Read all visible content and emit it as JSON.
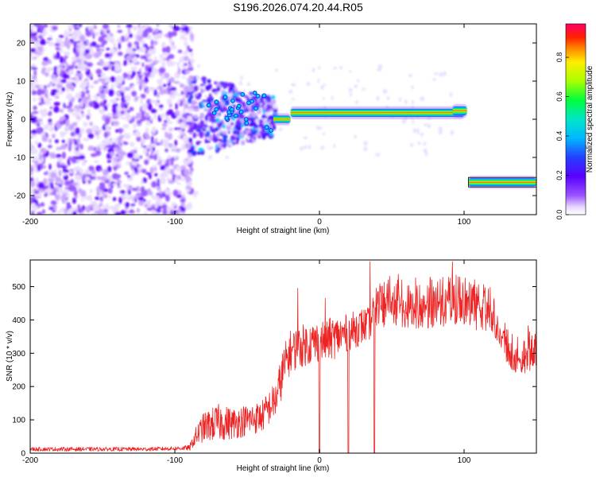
{
  "title": "S196.2026.074.20.44.R05",
  "colors": {
    "line": "#ee2222",
    "axis": "#000000",
    "palette": [
      "#ffffff",
      "#e0c8ff",
      "#b98cff",
      "#8a3cff",
      "#6a00ff",
      "#2233ff",
      "#00b4ff",
      "#00e6c8",
      "#00ff3c",
      "#aaff00",
      "#ffee00",
      "#ff8800",
      "#ff2200",
      "#ff0066"
    ]
  },
  "chart_data": [
    {
      "type": "heatmap",
      "title": "",
      "xlabel": "Height of straight line (km)",
      "ylabel": "Frequency (Hz)",
      "xlim": [
        -200,
        150
      ],
      "ylim": [
        -25,
        25
      ],
      "xticks": [
        "-200",
        "-100",
        "0",
        "100"
      ],
      "xtick_values": [
        -200,
        -100,
        0,
        100
      ],
      "yticks": [
        "-20",
        "-10",
        "0",
        "10",
        "20"
      ],
      "ytick_values": [
        -20,
        -10,
        0,
        10,
        20
      ],
      "colorbar": {
        "label": "Normalized spectral amplitude",
        "ticks": [
          "0.0",
          "0.2",
          "0.4",
          "0.6",
          "0.8"
        ],
        "tick_values": [
          0.0,
          0.2,
          0.4,
          0.6,
          0.8
        ],
        "range": [
          0,
          0.97
        ]
      },
      "features": [
        {
          "name": "noise",
          "x": [
            -200,
            -88
          ],
          "y": [
            -25,
            25
          ],
          "amplitude": 0.1
        },
        {
          "name": "transition",
          "x": [
            -88,
            -30
          ],
          "y": [
            -10,
            12
          ],
          "amplitude": 0.2
        },
        {
          "name": "ridge-1",
          "x": [
            -32,
            102
          ],
          "frequency": [
            0,
            2
          ],
          "amplitude": 0.95
        },
        {
          "name": "ridge-2",
          "x": [
            103,
            150
          ],
          "frequency": -16.5,
          "amplitude": 0.95
        }
      ]
    },
    {
      "type": "line",
      "title": "",
      "xlabel": "Height of straight line (km)",
      "ylabel": "SNR (10 * v/v)",
      "xlim": [
        -200,
        150
      ],
      "ylim": [
        0,
        580
      ],
      "xticks": [
        "-200",
        "-100",
        "0",
        "100"
      ],
      "xtick_values": [
        -200,
        -100,
        0,
        100
      ],
      "yticks": [
        "0",
        "100",
        "200",
        "300",
        "400",
        "500"
      ],
      "ytick_values": [
        0,
        100,
        200,
        300,
        400,
        500
      ],
      "series": [
        {
          "name": "SNR",
          "envelope": {
            "x": [
              -200,
              -180,
              -160,
              -140,
              -120,
              -100,
              -90,
              -85,
              -80,
              -70,
              -60,
              -50,
              -40,
              -30,
              -25,
              -20,
              -10,
              0,
              10,
              20,
              30,
              35,
              40,
              50,
              60,
              70,
              80,
              90,
              100,
              110,
              115,
              120,
              125,
              130,
              140,
              145,
              150
            ],
            "base": [
              12,
              12,
              12,
              12,
              12,
              14,
              16,
              40,
              60,
              70,
              70,
              80,
              90,
              140,
              220,
              280,
              300,
              310,
              320,
              340,
              360,
              370,
              395,
              410,
              405,
              400,
              405,
              410,
              400,
              395,
              390,
              380,
              330,
              280,
              240,
              270,
              300
            ],
            "amp": [
              6,
              6,
              6,
              6,
              6,
              6,
              8,
              40,
              55,
              70,
              60,
              60,
              60,
              70,
              90,
              80,
              80,
              80,
              80,
              70,
              70,
              60,
              50,
              60,
              60,
              60,
              60,
              60,
              60,
              55,
              50,
              45,
              40,
              35,
              35,
              60,
              80
            ]
          },
          "dropouts": [
            0,
            20,
            38
          ],
          "spikes": [
            {
              "x": -15,
              "y": 495
            },
            {
              "x": 4,
              "y": 465
            },
            {
              "x": 35,
              "y": 575
            },
            {
              "x": 92,
              "y": 575
            }
          ]
        }
      ]
    }
  ]
}
